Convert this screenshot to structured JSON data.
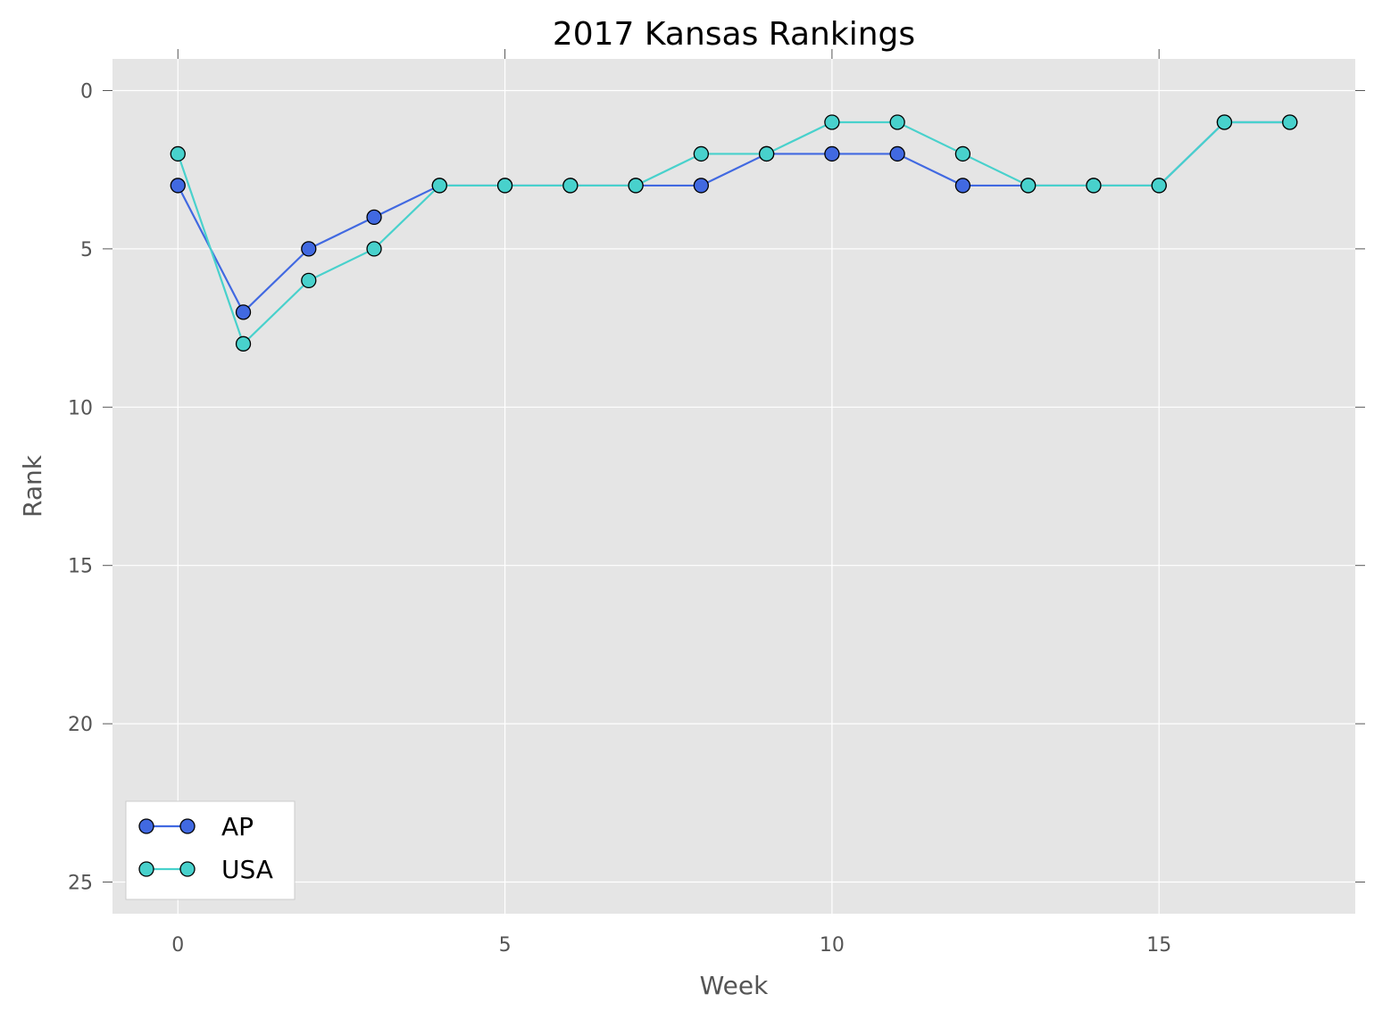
{
  "chart_data": {
    "type": "line",
    "title": "2017 Kansas Rankings",
    "xlabel": "Week",
    "ylabel": "Rank",
    "xlim": [
      -1,
      18
    ],
    "ylim": [
      26,
      -1
    ],
    "y_inverted": true,
    "x_ticks": [
      0,
      5,
      10,
      15
    ],
    "y_ticks": [
      0,
      5,
      10,
      15,
      20,
      25
    ],
    "grid": true,
    "legend_position": "lower-left",
    "background_color": "#e5e5e5",
    "x": [
      0,
      1,
      2,
      3,
      4,
      5,
      6,
      7,
      8,
      9,
      10,
      11,
      12,
      13,
      14,
      15,
      16,
      17
    ],
    "series": [
      {
        "name": "AP",
        "color": "#4169e1",
        "values": [
          3,
          7,
          5,
          4,
          3,
          3,
          3,
          3,
          3,
          2,
          2,
          2,
          3,
          3,
          3,
          3,
          1,
          1
        ]
      },
      {
        "name": "USA",
        "color": "#48d1cc",
        "values": [
          2,
          8,
          6,
          5,
          3,
          3,
          3,
          3,
          2,
          2,
          1,
          1,
          2,
          3,
          3,
          3,
          1,
          1
        ]
      }
    ]
  }
}
